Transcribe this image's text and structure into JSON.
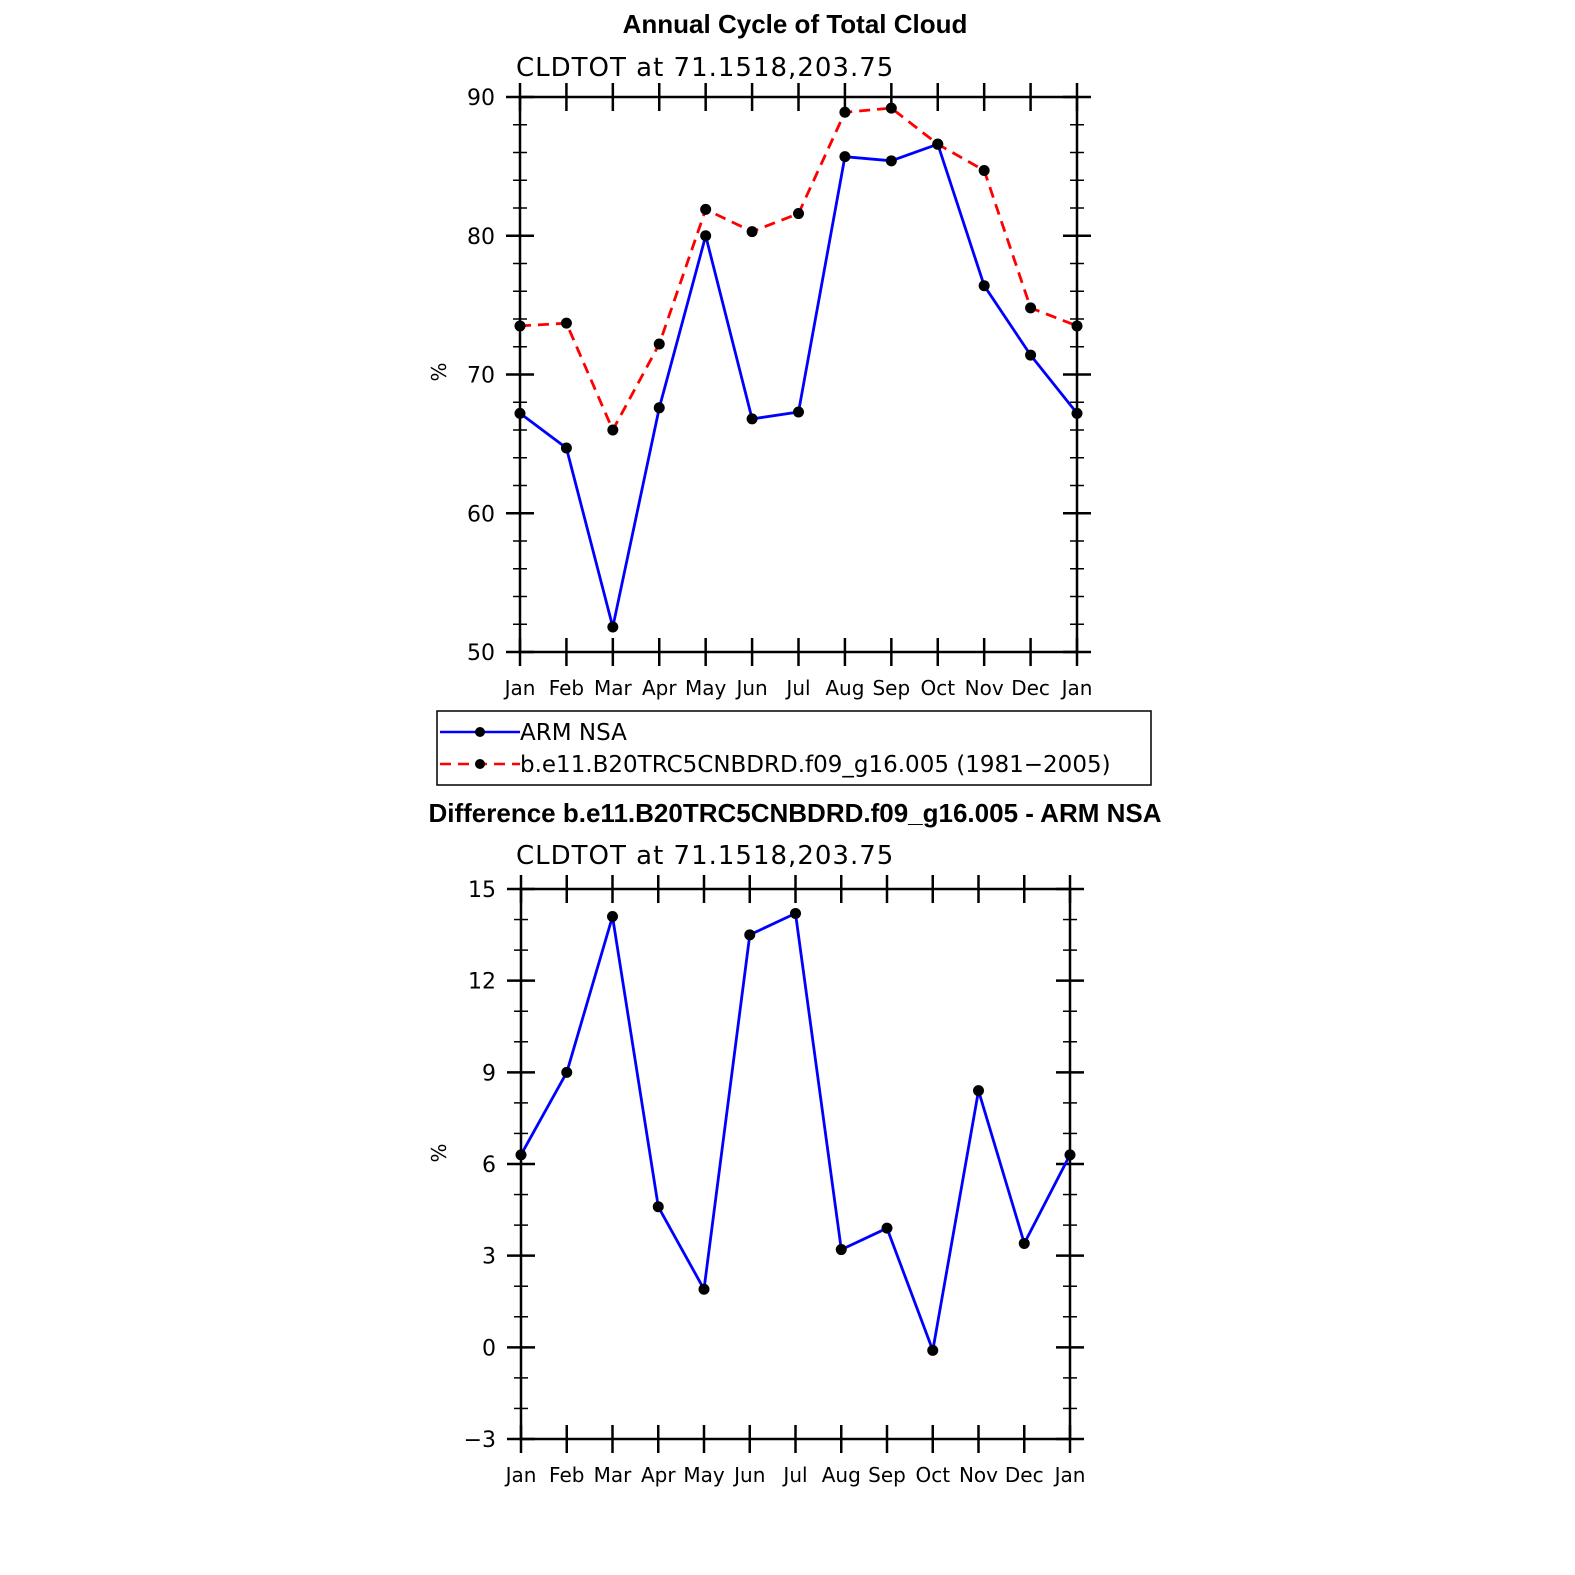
{
  "chart_data": [
    {
      "type": "line",
      "title": "Annual Cycle of Total Cloud",
      "subtitle": "CLDTOT at 71.1518,203.75",
      "xlabel": "",
      "ylabel": "%",
      "categories": [
        "Jan",
        "Feb",
        "Mar",
        "Apr",
        "May",
        "Jun",
        "Jul",
        "Aug",
        "Sep",
        "Oct",
        "Nov",
        "Dec",
        "Jan"
      ],
      "ylim": [
        50,
        90
      ],
      "yticks": [
        50,
        60,
        70,
        80,
        90
      ],
      "series": [
        {
          "name": "ARM NSA",
          "color": "#0000ff",
          "dash": "solid",
          "values": [
            67.2,
            64.7,
            51.8,
            67.6,
            80.0,
            66.8,
            67.3,
            85.7,
            85.4,
            86.6,
            76.4,
            71.4,
            67.2
          ]
        },
        {
          "name": "b.e11.B20TRC5CNBDRD.f09_g16.005 (1981−2005)",
          "color": "#ff0000",
          "dash": "dashed",
          "values": [
            73.5,
            73.7,
            66.0,
            72.2,
            81.9,
            80.3,
            81.6,
            88.9,
            89.2,
            86.6,
            84.7,
            74.8,
            73.5
          ]
        }
      ],
      "legend": {
        "placement": "bottom",
        "entries": [
          "ARM NSA",
          "b.e11.B20TRC5CNBDRD.f09_g16.005 (1981−2005)"
        ]
      }
    },
    {
      "type": "line",
      "title": "Difference b.e11.B20TRC5CNBDRD.f09_g16.005 - ARM NSA",
      "subtitle": "CLDTOT at 71.1518,203.75",
      "xlabel": "",
      "ylabel": "%",
      "categories": [
        "Jan",
        "Feb",
        "Mar",
        "Apr",
        "May",
        "Jun",
        "Jul",
        "Aug",
        "Sep",
        "Oct",
        "Nov",
        "Dec",
        "Jan"
      ],
      "ylim": [
        -3,
        15
      ],
      "yticks": [
        -3,
        0,
        3,
        6,
        9,
        12,
        15
      ],
      "ytick_labels": [
        "−3",
        "0",
        "3",
        "6",
        "9",
        "12",
        "15"
      ],
      "series": [
        {
          "name": "Difference",
          "color": "#0000ff",
          "dash": "solid",
          "values": [
            6.3,
            9.0,
            14.1,
            4.6,
            1.9,
            13.5,
            14.2,
            3.2,
            3.9,
            -0.1,
            8.4,
            3.4,
            6.3
          ]
        }
      ]
    }
  ]
}
